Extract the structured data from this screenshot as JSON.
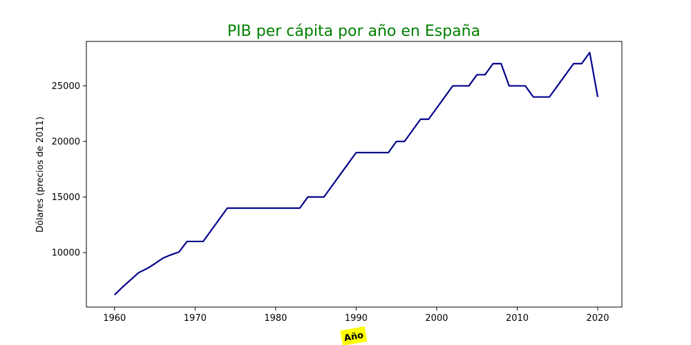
{
  "chart_data": {
    "type": "line",
    "title": "PIB per cápita por año en España",
    "xlabel": "Año",
    "ylabel": "Dólares (precios de 2011)",
    "xlim": [
      1956.5,
      2023.0
    ],
    "ylim": [
      5100,
      29000
    ],
    "xticks": [
      1960,
      1970,
      1980,
      1990,
      2000,
      2010,
      2020
    ],
    "yticks": [
      10000,
      15000,
      20000,
      25000
    ],
    "grid": false,
    "series": [
      {
        "color": "#00008b",
        "x": [
          1960,
          1961,
          1962,
          1963,
          1964,
          1965,
          1966,
          1967,
          1968,
          1969,
          1970,
          1971,
          1972,
          1973,
          1974,
          1975,
          1976,
          1977,
          1978,
          1979,
          1980,
          1981,
          1982,
          1983,
          1984,
          1985,
          1986,
          1987,
          1988,
          1989,
          1990,
          1991,
          1992,
          1993,
          1994,
          1995,
          1996,
          1997,
          1998,
          1999,
          2000,
          2001,
          2002,
          2003,
          2004,
          2005,
          2006,
          2007,
          2008,
          2009,
          2010,
          2011,
          2012,
          2013,
          2014,
          2015,
          2016,
          2017,
          2018,
          2019,
          2020
        ],
        "y": [
          6200,
          6900,
          7550,
          8200,
          8550,
          9000,
          9500,
          9800,
          10050,
          11000,
          11000,
          11000,
          12000,
          13000,
          14000,
          14000,
          14000,
          14000,
          14000,
          14000,
          14000,
          14000,
          14000,
          14000,
          15000,
          15000,
          15000,
          16000,
          17000,
          18000,
          19000,
          19000,
          19000,
          19000,
          19000,
          20000,
          20000,
          21000,
          22000,
          22000,
          23000,
          24000,
          25000,
          25000,
          25000,
          26000,
          26000,
          27000,
          27000,
          25000,
          25000,
          25000,
          24000,
          24000,
          24000,
          25000,
          26000,
          27000,
          27000,
          28000,
          24000
        ]
      }
    ]
  },
  "colors": {
    "title": "#008000",
    "line": "#00008b",
    "xlabel_background": "#ffff00"
  }
}
